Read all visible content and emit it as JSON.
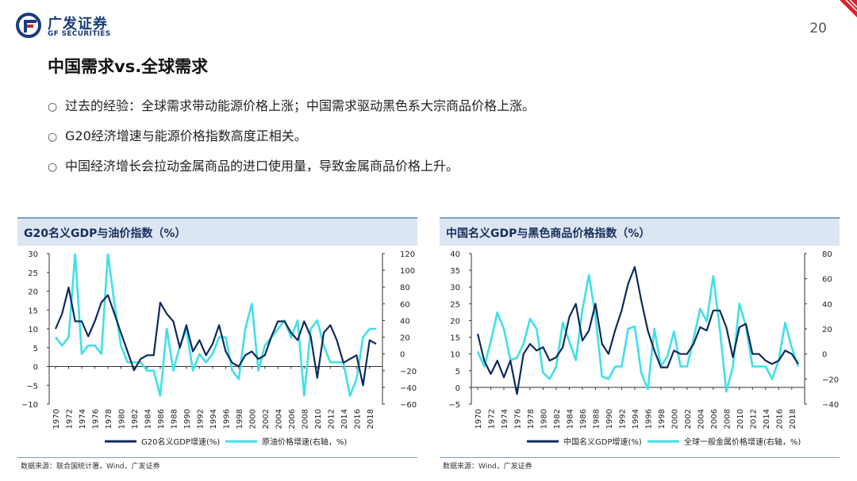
{
  "header": {
    "brand_cn": "广发证券",
    "brand_en": "GF SECURITIES",
    "page_number": "20"
  },
  "title": "中国需求vs.全球需求",
  "bullets": [
    "过去的经验：全球需求带动能源价格上涨；中国需求驱动黑色系大宗商品价格上涨。",
    "G20经济增速与能源价格指数高度正相关。",
    "中国经济增长会拉动金属商品的进口使用量，导致金属商品价格上升。"
  ],
  "colors": {
    "primary_series": "#0e2a5c",
    "secondary_series": "#40e0e8",
    "panel_header": "#dce6f3",
    "accent_red": "#d9232e"
  },
  "chart_data": [
    {
      "type": "line",
      "title": "G20名义GDP与油价指数（%）",
      "source": "数据来源：联合国统计署，Wind，广发证券",
      "x_tick_labels": [
        "1970",
        "1972",
        "1974",
        "1976",
        "1978",
        "1980",
        "1982",
        "1984",
        "1986",
        "1988",
        "1990",
        "1992",
        "1994",
        "1996",
        "1998",
        "2000",
        "2002",
        "2004",
        "2006",
        "2008",
        "2010",
        "2012",
        "2014",
        "2016",
        "2018"
      ],
      "y_left_ticks": [
        "30",
        "25",
        "20",
        "15",
        "10",
        "5",
        "0",
        "−5",
        "−10"
      ],
      "y_right_ticks": [
        "120",
        "100",
        "80",
        "60",
        "40",
        "20",
        "0",
        "−20",
        "−40",
        "−60"
      ],
      "y_left_range": [
        -10,
        30
      ],
      "y_right_range": [
        -60,
        120
      ],
      "x": [
        1970,
        1971,
        1972,
        1973,
        1974,
        1975,
        1976,
        1977,
        1978,
        1979,
        1980,
        1981,
        1982,
        1983,
        1984,
        1985,
        1986,
        1987,
        1988,
        1989,
        1990,
        1991,
        1992,
        1993,
        1994,
        1995,
        1996,
        1997,
        1998,
        1999,
        2000,
        2001,
        2002,
        2003,
        2004,
        2005,
        2006,
        2007,
        2008,
        2009,
        2010,
        2011,
        2012,
        2013,
        2014,
        2015,
        2016,
        2017,
        2018,
        2019
      ],
      "series": [
        {
          "name": "G20名义GDP增速(%)",
          "axis": "left",
          "values": [
            10,
            14,
            21,
            12,
            12,
            8,
            12,
            17,
            19,
            14,
            9,
            4,
            -1,
            2,
            3,
            3,
            17,
            14,
            12,
            5,
            11,
            4,
            7,
            3,
            6,
            11,
            4,
            1,
            0,
            3,
            4,
            2,
            3,
            8,
            12,
            12,
            9,
            7,
            12,
            8,
            -3,
            9,
            11,
            7,
            1,
            2,
            3,
            -5,
            7,
            6
          ]
        },
        {
          "name": "原油价格增速(右轴，%)",
          "axis": "right",
          "values": [
            20,
            10,
            20,
            120,
            0,
            10,
            10,
            0,
            120,
            60,
            10,
            -10,
            -10,
            -10,
            -20,
            -20,
            -50,
            30,
            -20,
            10,
            30,
            -20,
            0,
            -10,
            0,
            20,
            20,
            -20,
            -30,
            30,
            60,
            -20,
            10,
            20,
            30,
            40,
            20,
            40,
            -50,
            30,
            40,
            10,
            -10,
            -10,
            -10,
            -50,
            -30,
            20,
            30,
            30
          ]
        }
      ]
    },
    {
      "type": "line",
      "title": "中国名义GDP与黑色商品价格指数（%）",
      "source": "数据来源：Wind，广发证券",
      "x_tick_labels": [
        "1970",
        "1972",
        "1974",
        "1976",
        "1978",
        "1980",
        "1982",
        "1984",
        "1986",
        "1988",
        "1990",
        "1992",
        "1994",
        "1996",
        "1998",
        "2000",
        "2002",
        "2004",
        "2006",
        "2008",
        "2010",
        "2012",
        "2014",
        "2016",
        "2018"
      ],
      "y_left_ticks": [
        "40",
        "35",
        "30",
        "25",
        "20",
        "15",
        "10",
        "5",
        "0",
        "−5"
      ],
      "y_right_ticks": [
        "80",
        "60",
        "40",
        "20",
        "0",
        "−20",
        "−40"
      ],
      "y_left_range": [
        -5,
        40
      ],
      "y_right_range": [
        -40,
        80
      ],
      "x": [
        1970,
        1971,
        1972,
        1973,
        1974,
        1975,
        1976,
        1977,
        1978,
        1979,
        1980,
        1981,
        1982,
        1983,
        1984,
        1985,
        1986,
        1987,
        1988,
        1989,
        1990,
        1991,
        1992,
        1993,
        1994,
        1995,
        1996,
        1997,
        1998,
        1999,
        2000,
        2001,
        2002,
        2003,
        2004,
        2005,
        2006,
        2007,
        2008,
        2009,
        2010,
        2011,
        2012,
        2013,
        2014,
        2015,
        2016,
        2017,
        2018,
        2019
      ],
      "series": [
        {
          "name": "中国名义GDP增速(%)",
          "axis": "left",
          "values": [
            16,
            8,
            4,
            8,
            3,
            8,
            -2,
            10,
            13,
            11,
            12,
            8,
            9,
            12,
            21,
            25,
            14,
            17,
            25,
            13,
            10,
            17,
            23,
            31,
            36,
            26,
            17,
            11,
            6,
            6,
            11,
            10,
            10,
            13,
            18,
            17,
            23,
            23,
            18,
            9,
            18,
            19,
            10,
            10,
            8,
            7,
            8,
            11,
            10,
            7
          ]
        },
        {
          "name": "全球一般金属价格增速(右轴，%)",
          "axis": "right",
          "values": [
            2,
            -10,
            10,
            33,
            20,
            -5,
            -3,
            8,
            28,
            20,
            -15,
            -20,
            -10,
            25,
            10,
            -5,
            35,
            63,
            30,
            -18,
            -20,
            -10,
            -10,
            20,
            22,
            -15,
            -28,
            20,
            -10,
            -2,
            18,
            -10,
            -10,
            12,
            36,
            26,
            62,
            20,
            -30,
            -10,
            40,
            22,
            -10,
            -10,
            -10,
            -20,
            -5,
            25,
            5,
            -10
          ]
        }
      ]
    }
  ]
}
